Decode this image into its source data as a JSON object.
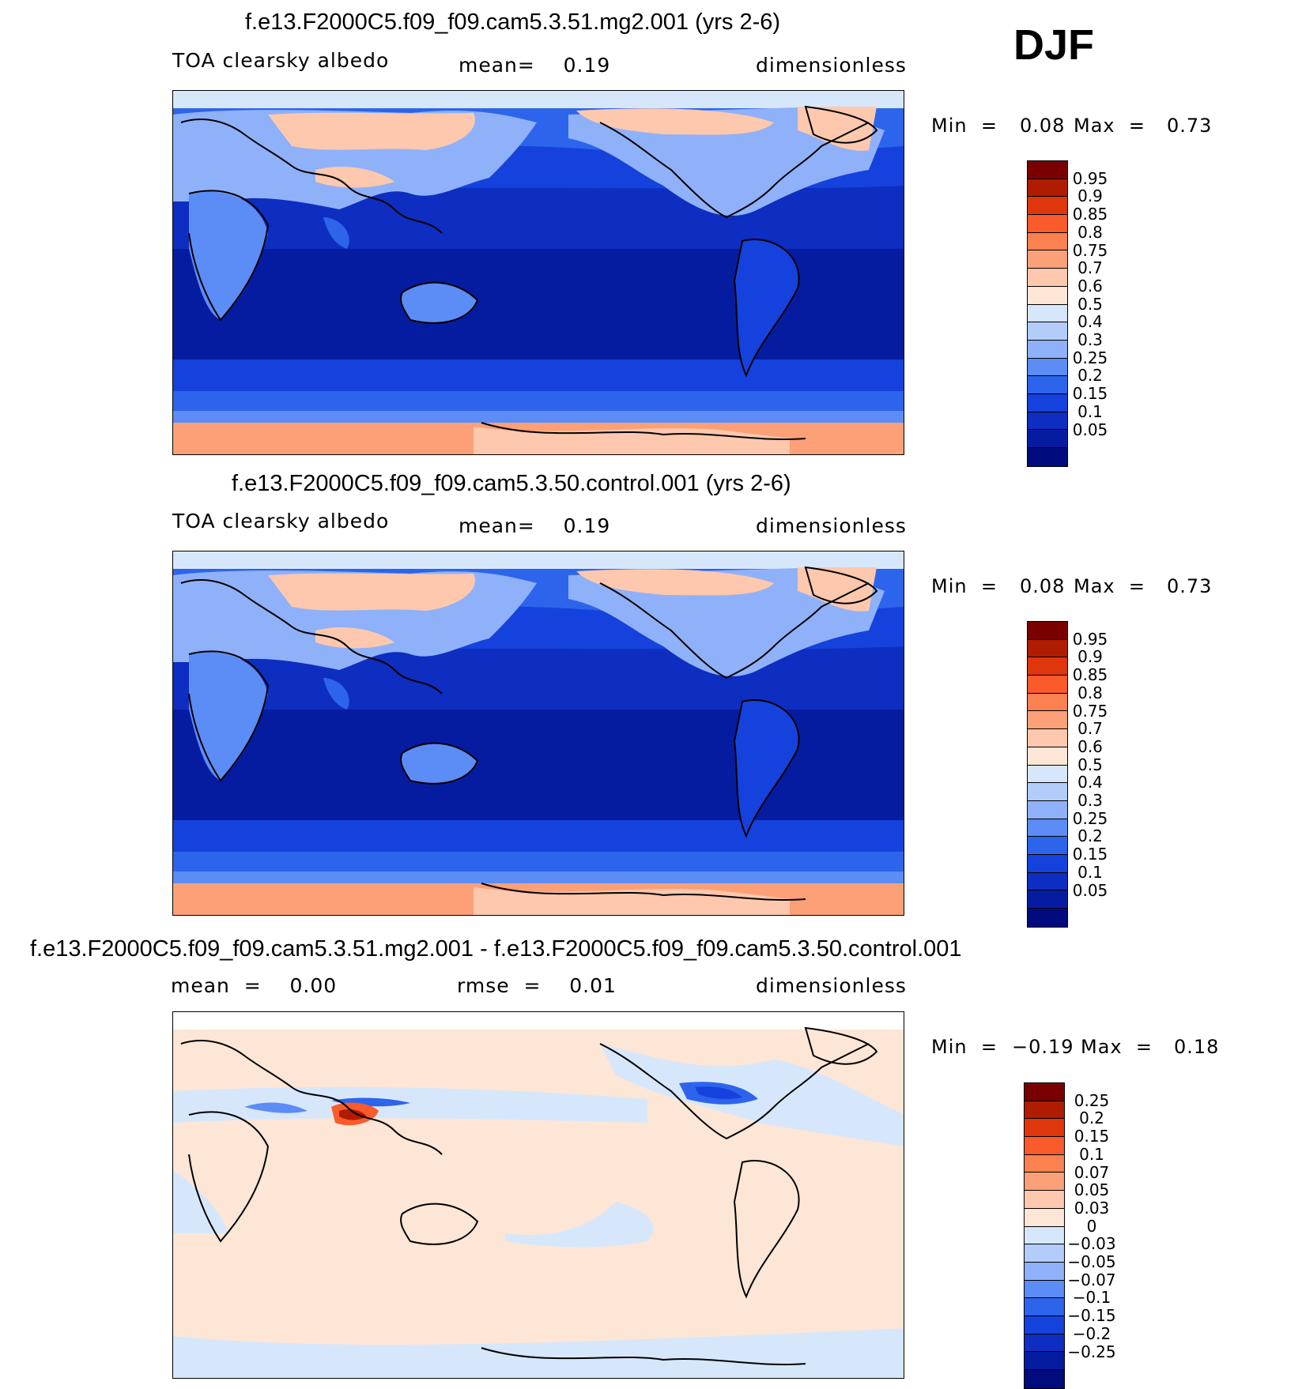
{
  "season": "DJF",
  "panels": [
    {
      "title": "f.e13.F2000C5.f09_f09.cam5.3.51.mg2.001 (yrs 2-6)",
      "variable": "TOA clearsky albedo",
      "stat": "mean=    0.19",
      "units": "dimensionless",
      "min_label": "Min  =",
      "min_value": "0.08",
      "max_label": "Max  =",
      "max_value": "0.73",
      "colorbar": {
        "colors": [
          "#7a0000",
          "#b01c00",
          "#e0360c",
          "#fb5a2b",
          "#fc8150",
          "#fca077",
          "#fdc8ad",
          "#fde6d6",
          "#d7e7fb",
          "#b3cdfb",
          "#8fb1fa",
          "#5c8cf6",
          "#2d64ec",
          "#1542dc",
          "#0d2ec0",
          "#061ca0",
          "#000b7e"
        ],
        "labels": [
          "0.95",
          "0.9",
          "0.85",
          "0.8",
          "0.75",
          "0.7",
          "0.6",
          "0.5",
          "0.4",
          "0.3",
          "0.25",
          "0.2",
          "0.15",
          "0.1",
          "0.05"
        ]
      }
    },
    {
      "title": "f.e13.F2000C5.f09_f09.cam5.3.50.control.001 (yrs 2-6)",
      "variable": "TOA clearsky albedo",
      "stat": "mean=    0.19",
      "units": "dimensionless",
      "min_label": "Min  =",
      "min_value": "0.08",
      "max_label": "Max  =",
      "max_value": "0.73",
      "colorbar": {
        "colors": [
          "#7a0000",
          "#b01c00",
          "#e0360c",
          "#fb5a2b",
          "#fc8150",
          "#fca077",
          "#fdc8ad",
          "#fde6d6",
          "#d7e7fb",
          "#b3cdfb",
          "#8fb1fa",
          "#5c8cf6",
          "#2d64ec",
          "#1542dc",
          "#0d2ec0",
          "#061ca0",
          "#000b7e"
        ],
        "labels": [
          "0.95",
          "0.9",
          "0.85",
          "0.8",
          "0.75",
          "0.7",
          "0.6",
          "0.5",
          "0.4",
          "0.3",
          "0.25",
          "0.2",
          "0.15",
          "0.1",
          "0.05"
        ]
      }
    },
    {
      "title": "f.e13.F2000C5.f09_f09.cam5.3.51.mg2.001 - f.e13.F2000C5.f09_f09.cam5.3.50.control.001",
      "variable": "mean  =    0.00",
      "stat": "rmse  =    0.01",
      "units": "dimensionless",
      "min_label": "Min  =",
      "min_value": "−0.19",
      "max_label": "Max  =",
      "max_value": "0.18",
      "colorbar": {
        "colors": [
          "#7a0000",
          "#b01c00",
          "#e0360c",
          "#fb5a2b",
          "#fc8150",
          "#fca077",
          "#fdc8ad",
          "#fde6d6",
          "#d7e7fb",
          "#b3cdfb",
          "#8fb1fa",
          "#5c8cf6",
          "#2d64ec",
          "#1542dc",
          "#0d2ec0",
          "#061ca0",
          "#000b7e"
        ],
        "labels": [
          "0.25",
          "0.2",
          "0.15",
          "0.1",
          "0.07",
          "0.05",
          "0.03",
          "0",
          "−0.03",
          "−0.05",
          "−0.07",
          "−0.1",
          "−0.15",
          "−0.2",
          "−0.25"
        ]
      }
    }
  ]
}
